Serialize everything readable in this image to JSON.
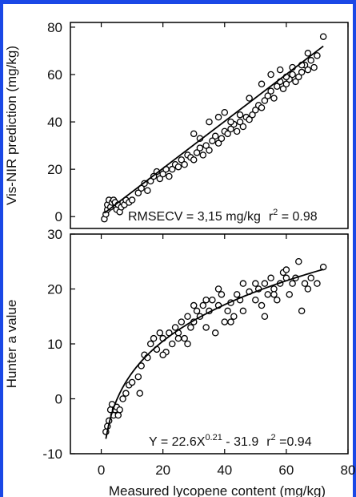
{
  "chart_data": [
    {
      "type": "scatter",
      "ylabel": "Vis-NIR prediction (mg/kg)",
      "xlabel": "",
      "xlim": [
        -10,
        80
      ],
      "ylim": [
        -5,
        82
      ],
      "yticks": [
        0,
        20,
        40,
        60,
        80
      ],
      "annotation": {
        "rmsecv": "RMSECV = 3,15 mg/kg",
        "r2_prefix": "r",
        "r2_sup": "2",
        "r2_value": " = 0.98"
      },
      "fit": {
        "kind": "linear",
        "x": [
          1,
          72
        ],
        "y": [
          1.5,
          72
        ]
      },
      "points": [
        [
          1,
          -1
        ],
        [
          1.5,
          1
        ],
        [
          2,
          3
        ],
        [
          2,
          5
        ],
        [
          2.5,
          7
        ],
        [
          3,
          4
        ],
        [
          3.5,
          6
        ],
        [
          4,
          7
        ],
        [
          4.5,
          6
        ],
        [
          5,
          3
        ],
        [
          5.5,
          5
        ],
        [
          6,
          2
        ],
        [
          6.5,
          4
        ],
        [
          7,
          6
        ],
        [
          7.5,
          5
        ],
        [
          8,
          7
        ],
        [
          9,
          6
        ],
        [
          10,
          7
        ],
        [
          12,
          10
        ],
        [
          13,
          12
        ],
        [
          14,
          14
        ],
        [
          15,
          11
        ],
        [
          16,
          15
        ],
        [
          17,
          17
        ],
        [
          18,
          19
        ],
        [
          19,
          16
        ],
        [
          20,
          18
        ],
        [
          21,
          20
        ],
        [
          22,
          17
        ],
        [
          23,
          20
        ],
        [
          24,
          22
        ],
        [
          25,
          21
        ],
        [
          26,
          24
        ],
        [
          27,
          22
        ],
        [
          28,
          26
        ],
        [
          29,
          25
        ],
        [
          30,
          24
        ],
        [
          31,
          27
        ],
        [
          32,
          29
        ],
        [
          33,
          26
        ],
        [
          34,
          30
        ],
        [
          35,
          28
        ],
        [
          36,
          32
        ],
        [
          37,
          34
        ],
        [
          38,
          31
        ],
        [
          39,
          33
        ],
        [
          40,
          36
        ],
        [
          41,
          35
        ],
        [
          42,
          37
        ],
        [
          43,
          39
        ],
        [
          44,
          36
        ],
        [
          45,
          40
        ],
        [
          46,
          38
        ],
        [
          47,
          42
        ],
        [
          48,
          41
        ],
        [
          49,
          43
        ],
        [
          50,
          45
        ],
        [
          51,
          47
        ],
        [
          52,
          46
        ],
        [
          53,
          49
        ],
        [
          54,
          51
        ],
        [
          55,
          53
        ],
        [
          56,
          50
        ],
        [
          57,
          55
        ],
        [
          58,
          57
        ],
        [
          59,
          54
        ],
        [
          60,
          56
        ],
        [
          61,
          58
        ],
        [
          62,
          60
        ],
        [
          63,
          57
        ],
        [
          64,
          59
        ],
        [
          65,
          61
        ],
        [
          66,
          64
        ],
        [
          67,
          62
        ],
        [
          68,
          66
        ],
        [
          69,
          63
        ],
        [
          70,
          68
        ],
        [
          72,
          76
        ],
        [
          30,
          35
        ],
        [
          32,
          33
        ],
        [
          35,
          40
        ],
        [
          38,
          42
        ],
        [
          40,
          44
        ],
        [
          42,
          40
        ],
        [
          45,
          43
        ],
        [
          48,
          50
        ],
        [
          52,
          56
        ],
        [
          55,
          60
        ],
        [
          58,
          62
        ],
        [
          60,
          59
        ],
        [
          62,
          63
        ],
        [
          65,
          64
        ],
        [
          67,
          69
        ]
      ]
    },
    {
      "type": "scatter",
      "ylabel": "Hunter a value",
      "xlabel": "Measured lycopene content (mg/kg)",
      "xlim": [
        -10,
        80
      ],
      "ylim": [
        -10,
        30
      ],
      "xticks": [
        0,
        20,
        40,
        60,
        80
      ],
      "yticks": [
        -10,
        0,
        10,
        20,
        30
      ],
      "annotation": {
        "eq_prefix": "Y = 22.6X",
        "eq_sup": "0.21",
        "eq_suffix": " - 31.9",
        "r2_prefix": "r",
        "r2_sup": "2",
        "r2_value": " =0.94"
      },
      "fit": {
        "kind": "power",
        "a": 22.6,
        "b": 0.21,
        "c": -31.9,
        "x_range": [
          1.5,
          72
        ]
      },
      "points": [
        [
          1.5,
          -6
        ],
        [
          2,
          -5
        ],
        [
          2.5,
          -4
        ],
        [
          3,
          -2
        ],
        [
          3.5,
          -1
        ],
        [
          4,
          -3
        ],
        [
          4.5,
          -2
        ],
        [
          5,
          -1.5
        ],
        [
          5.5,
          -3
        ],
        [
          6,
          -2
        ],
        [
          7,
          0
        ],
        [
          8,
          1
        ],
        [
          9,
          2.5
        ],
        [
          10,
          3
        ],
        [
          12,
          4
        ],
        [
          12.5,
          1
        ],
        [
          13,
          6
        ],
        [
          14,
          8
        ],
        [
          15,
          7.5
        ],
        [
          16,
          10
        ],
        [
          17,
          11
        ],
        [
          18,
          9
        ],
        [
          19,
          12
        ],
        [
          20,
          11
        ],
        [
          21,
          8.5
        ],
        [
          22,
          12
        ],
        [
          23,
          10
        ],
        [
          24,
          13
        ],
        [
          25,
          12
        ],
        [
          26,
          14
        ],
        [
          27,
          11
        ],
        [
          28,
          15
        ],
        [
          29,
          13
        ],
        [
          30,
          14
        ],
        [
          31,
          16
        ],
        [
          32,
          15
        ],
        [
          33,
          17
        ],
        [
          34,
          13
        ],
        [
          35,
          16
        ],
        [
          36,
          18
        ],
        [
          37,
          12
        ],
        [
          38,
          17
        ],
        [
          39,
          19
        ],
        [
          40,
          14
        ],
        [
          41,
          16
        ],
        [
          42,
          17.5
        ],
        [
          43,
          15
        ],
        [
          44,
          19
        ],
        [
          45,
          18
        ],
        [
          46,
          21
        ],
        [
          48,
          19.5
        ],
        [
          50,
          18
        ],
        [
          51,
          20
        ],
        [
          52,
          17
        ],
        [
          53,
          21
        ],
        [
          54,
          19
        ],
        [
          55,
          22
        ],
        [
          56,
          20
        ],
        [
          57,
          18
        ],
        [
          58,
          21
        ],
        [
          59,
          23
        ],
        [
          60,
          22
        ],
        [
          61,
          19
        ],
        [
          62,
          21
        ],
        [
          63,
          22
        ],
        [
          64,
          25
        ],
        [
          65,
          16
        ],
        [
          66,
          21
        ],
        [
          67,
          20
        ],
        [
          68,
          22
        ],
        [
          70,
          21
        ],
        [
          72,
          24
        ],
        [
          20,
          8
        ],
        [
          25,
          11
        ],
        [
          28,
          10
        ],
        [
          30,
          17
        ],
        [
          34,
          18
        ],
        [
          38,
          20
        ],
        [
          42,
          14
        ],
        [
          46,
          16
        ],
        [
          50,
          21
        ],
        [
          53,
          15
        ],
        [
          56,
          19
        ],
        [
          60,
          23.5
        ]
      ]
    }
  ]
}
